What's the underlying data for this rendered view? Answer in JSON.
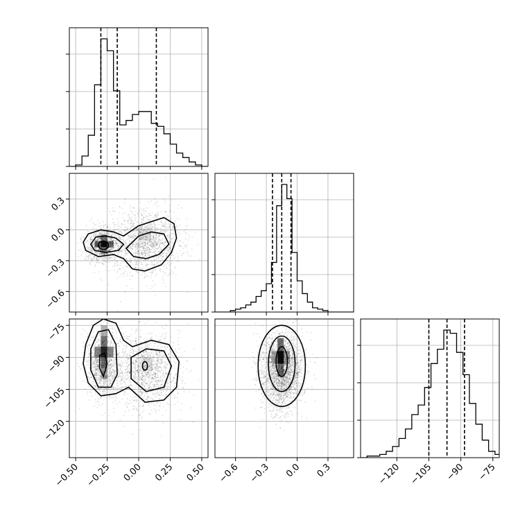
{
  "chart_data": {
    "type": "corner",
    "grid": true,
    "parameters": [
      {
        "range": [
          -0.55,
          0.55
        ],
        "ticks": [
          "-0.50",
          "-0.25",
          "0.00",
          "0.25",
          "0.50"
        ],
        "quantiles": [
          -0.3,
          -0.17,
          0.14
        ],
        "hist_bins": [
          -0.55,
          -0.5,
          -0.45,
          -0.4,
          -0.35,
          -0.3,
          -0.25,
          -0.2,
          -0.15,
          -0.1,
          -0.05,
          0,
          0.05,
          0.1,
          0.15,
          0.2,
          0.25,
          0.3,
          0.35,
          0.4,
          0.45,
          0.5,
          0.55
        ],
        "hist_counts": [
          0,
          1,
          7,
          21,
          55,
          86,
          78,
          51,
          28,
          31,
          35,
          37,
          37,
          29,
          27,
          22,
          15,
          9,
          6,
          3,
          1,
          0
        ]
      },
      {
        "range": [
          -0.8,
          0.55
        ],
        "ticks": [
          "-0.6",
          "-0.3",
          "0.0",
          "0.3"
        ],
        "quantiles": [
          -0.24,
          -0.15,
          -0.06
        ],
        "hist_bins": [
          -0.8,
          -0.75,
          -0.7,
          -0.65,
          -0.6,
          -0.55,
          -0.5,
          -0.45,
          -0.4,
          -0.35,
          -0.3,
          -0.25,
          -0.2,
          -0.15,
          -0.1,
          -0.05,
          0,
          0.05,
          0.1,
          0.15,
          0.2,
          0.25,
          0.3,
          0.35,
          0.4,
          0.45,
          0.5,
          0.55
        ],
        "hist_counts": [
          0,
          0,
          0,
          1,
          2,
          3,
          5,
          7,
          11,
          15,
          20,
          35,
          75,
          90,
          80,
          42,
          22,
          13,
          7,
          3,
          2,
          1,
          0,
          0,
          0,
          0,
          0
        ]
      },
      {
        "range": [
          -137,
          -72
        ],
        "ticks": [
          "-120",
          "-105",
          "-90",
          "-75"
        ],
        "quantiles": [
          -105,
          -96.5,
          -88.3
        ],
        "hist_bins": [
          -137,
          -134,
          -131,
          -128,
          -125,
          -122,
          -119,
          -116,
          -113,
          -110,
          -107,
          -104,
          -101,
          -98,
          -95,
          -92,
          -89,
          -86,
          -83,
          -80,
          -77,
          -74,
          -71
        ],
        "hist_counts": [
          0,
          1,
          1,
          2,
          4,
          7,
          12,
          18,
          27,
          33,
          44,
          59,
          68,
          80,
          78,
          66,
          52,
          34,
          21,
          11,
          4,
          2
        ]
      }
    ]
  }
}
